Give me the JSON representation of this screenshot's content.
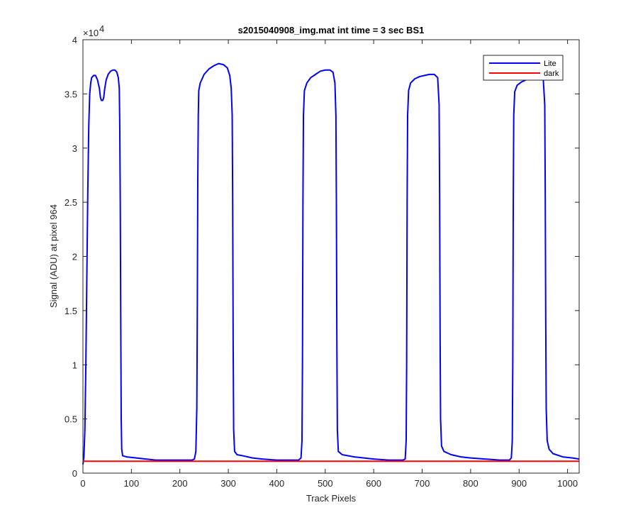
{
  "chart_data": {
    "type": "line",
    "title": "s2015040908_img.mat int time = 3 sec   BS1",
    "xlabel": "Track Pixels",
    "ylabel": "Signal (ADU) at pixel 964",
    "xlim": [
      0,
      1024
    ],
    "ylim": [
      0,
      4
    ],
    "y_multiplier_label": "×10",
    "y_multiplier_exponent": "4",
    "x_ticks": [
      0,
      100,
      200,
      300,
      400,
      500,
      600,
      700,
      800,
      900,
      1000
    ],
    "x_tick_labels": [
      "0",
      "100",
      "200",
      "300",
      "400",
      "500",
      "600",
      "700",
      "800",
      "900",
      "1000"
    ],
    "y_ticks": [
      0,
      0.5,
      1,
      1.5,
      2,
      2.5,
      3,
      3.5,
      4
    ],
    "y_tick_labels": [
      "0",
      "0.5",
      "1",
      "1.5",
      "2",
      "2.5",
      "3",
      "3.5",
      "4"
    ],
    "grid": false,
    "legend_position": "top-right",
    "series": [
      {
        "name": "Lite",
        "color": "#0000ff",
        "points": [
          [
            0,
            0.08
          ],
          [
            2,
            0.15
          ],
          [
            4,
            0.4
          ],
          [
            6,
            1.0
          ],
          [
            8,
            1.8
          ],
          [
            10,
            2.6
          ],
          [
            12,
            3.2
          ],
          [
            14,
            3.5
          ],
          [
            16,
            3.6
          ],
          [
            18,
            3.65
          ],
          [
            22,
            3.67
          ],
          [
            26,
            3.67
          ],
          [
            30,
            3.63
          ],
          [
            34,
            3.55
          ],
          [
            36,
            3.47
          ],
          [
            38,
            3.44
          ],
          [
            41,
            3.44
          ],
          [
            43,
            3.47
          ],
          [
            45,
            3.55
          ],
          [
            48,
            3.63
          ],
          [
            52,
            3.68
          ],
          [
            57,
            3.71
          ],
          [
            62,
            3.72
          ],
          [
            66,
            3.72
          ],
          [
            70,
            3.7
          ],
          [
            73,
            3.65
          ],
          [
            75,
            3.55
          ],
          [
            76,
            3.2
          ],
          [
            77,
            2.5
          ],
          [
            78,
            1.4
          ],
          [
            79,
            0.5
          ],
          [
            80,
            0.22
          ],
          [
            82,
            0.16
          ],
          [
            90,
            0.15
          ],
          [
            110,
            0.14
          ],
          [
            130,
            0.13
          ],
          [
            150,
            0.12
          ],
          [
            180,
            0.12
          ],
          [
            210,
            0.12
          ],
          [
            225,
            0.12
          ],
          [
            230,
            0.13
          ],
          [
            233,
            0.2
          ],
          [
            235,
            0.6
          ],
          [
            236,
            1.5
          ],
          [
            237,
            2.7
          ],
          [
            238,
            3.3
          ],
          [
            239,
            3.53
          ],
          [
            242,
            3.6
          ],
          [
            250,
            3.68
          ],
          [
            260,
            3.73
          ],
          [
            270,
            3.76
          ],
          [
            280,
            3.78
          ],
          [
            290,
            3.77
          ],
          [
            298,
            3.74
          ],
          [
            303,
            3.67
          ],
          [
            306,
            3.55
          ],
          [
            308,
            3.3
          ],
          [
            309,
            2.5
          ],
          [
            310,
            1.2
          ],
          [
            311,
            0.4
          ],
          [
            313,
            0.2
          ],
          [
            318,
            0.17
          ],
          [
            330,
            0.16
          ],
          [
            350,
            0.14
          ],
          [
            370,
            0.13
          ],
          [
            400,
            0.12
          ],
          [
            430,
            0.12
          ],
          [
            445,
            0.12
          ],
          [
            450,
            0.14
          ],
          [
            452,
            0.3
          ],
          [
            453,
            1.0
          ],
          [
            454,
            2.5
          ],
          [
            455,
            3.3
          ],
          [
            457,
            3.53
          ],
          [
            462,
            3.6
          ],
          [
            470,
            3.65
          ],
          [
            480,
            3.68
          ],
          [
            490,
            3.71
          ],
          [
            500,
            3.72
          ],
          [
            510,
            3.72
          ],
          [
            516,
            3.7
          ],
          [
            520,
            3.6
          ],
          [
            522,
            3.3
          ],
          [
            523,
            2.5
          ],
          [
            524,
            1.2
          ],
          [
            525,
            0.4
          ],
          [
            527,
            0.2
          ],
          [
            535,
            0.17
          ],
          [
            560,
            0.15
          ],
          [
            580,
            0.14
          ],
          [
            600,
            0.13
          ],
          [
            630,
            0.12
          ],
          [
            660,
            0.12
          ],
          [
            665,
            0.13
          ],
          [
            667,
            0.3
          ],
          [
            668,
            1.0
          ],
          [
            669,
            2.5
          ],
          [
            670,
            3.3
          ],
          [
            672,
            3.53
          ],
          [
            676,
            3.6
          ],
          [
            685,
            3.64
          ],
          [
            695,
            3.66
          ],
          [
            705,
            3.67
          ],
          [
            715,
            3.68
          ],
          [
            725,
            3.68
          ],
          [
            732,
            3.65
          ],
          [
            735,
            3.4
          ],
          [
            736,
            2.6
          ],
          [
            737,
            1.3
          ],
          [
            738,
            0.5
          ],
          [
            740,
            0.25
          ],
          [
            745,
            0.2
          ],
          [
            760,
            0.17
          ],
          [
            780,
            0.15
          ],
          [
            800,
            0.14
          ],
          [
            830,
            0.13
          ],
          [
            860,
            0.12
          ],
          [
            880,
            0.12
          ],
          [
            884,
            0.14
          ],
          [
            886,
            0.3
          ],
          [
            887,
            1.0
          ],
          [
            888,
            2.5
          ],
          [
            889,
            3.3
          ],
          [
            891,
            3.52
          ],
          [
            896,
            3.58
          ],
          [
            905,
            3.61
          ],
          [
            915,
            3.63
          ],
          [
            925,
            3.64
          ],
          [
            935,
            3.65
          ],
          [
            945,
            3.65
          ],
          [
            950,
            3.63
          ],
          [
            953,
            3.4
          ],
          [
            954,
            2.6
          ],
          [
            955,
            1.4
          ],
          [
            956,
            0.6
          ],
          [
            958,
            0.3
          ],
          [
            962,
            0.22
          ],
          [
            970,
            0.18
          ],
          [
            990,
            0.15
          ],
          [
            1010,
            0.14
          ],
          [
            1024,
            0.13
          ]
        ]
      },
      {
        "name": "dark",
        "color": "#ff0000",
        "points": [
          [
            0,
            0.11
          ],
          [
            1024,
            0.11
          ]
        ]
      }
    ]
  }
}
